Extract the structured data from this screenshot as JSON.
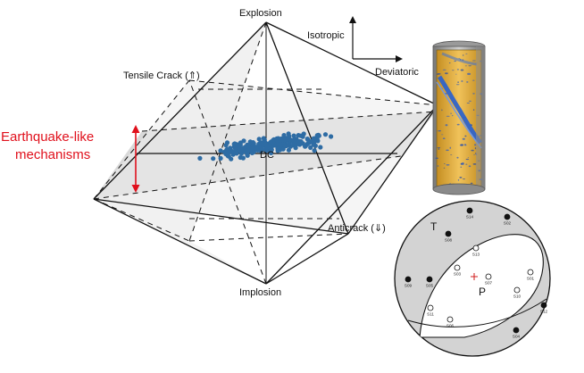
{
  "diagram": {
    "vertices": {
      "top": "Explosion",
      "bottom": "Implosion",
      "center": "DC"
    },
    "edge_labels": {
      "tensile_crack": "Tensile Crack (⇑)",
      "anticrack": "Anticrack (⇓)"
    },
    "axes": {
      "vertical": "Isotropic",
      "horizontal": "Deviatoric"
    },
    "earthquake_label": [
      "Earthquake-like",
      "mechanisms"
    ],
    "colors": {
      "earthquake_text": "#e0101c",
      "arrow": "#e0101c",
      "data_points": "#2e6ca4",
      "shaded_plane": "#d9d9d9",
      "focal_shade": "#d3d3d3",
      "sample_gold": "#e6b03c",
      "sample_crack": "#2f63c9"
    }
  },
  "focal_mechanism": {
    "t_label": "T",
    "p_label": "P",
    "stations_filled": [
      "S14",
      "S02",
      "S08",
      "S09",
      "S05",
      "S12",
      "S04"
    ],
    "stations_open": [
      "S13",
      "S03",
      "S07",
      "S01",
      "S10",
      "S11",
      "S06"
    ]
  }
}
